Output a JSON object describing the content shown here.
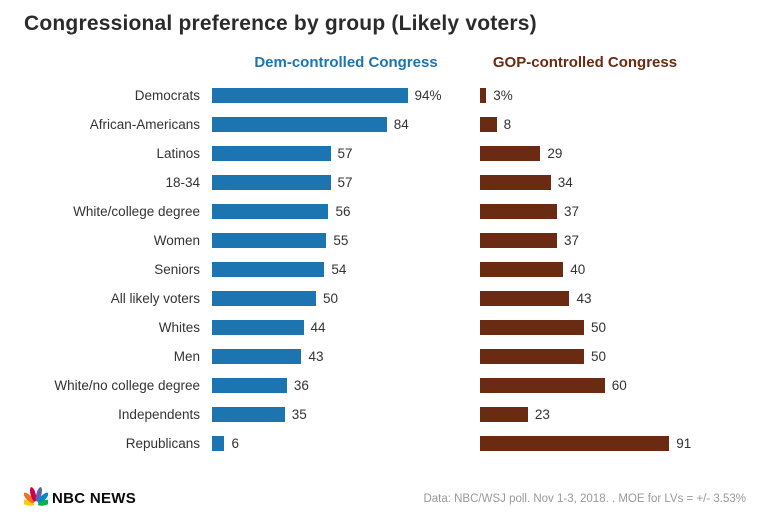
{
  "title": "Congressional preference by group (Likely voters)",
  "legend": {
    "dem": "Dem-controlled Congress",
    "gop": "GOP-controlled Congress"
  },
  "colors": {
    "dem": "#1c75b0",
    "gop": "#6a2b12"
  },
  "footer": {
    "brand": "NBC NEWS",
    "source": "Data: NBC/WSJ poll. Nov 1-3, 2018. . MOE for LVs = +/- 3.53%"
  },
  "chart_data": {
    "type": "bar",
    "orientation": "horizontal",
    "title": "Congressional preference by group (Likely voters)",
    "xlim": [
      0,
      100
    ],
    "grid": false,
    "legend_position": "top",
    "categories": [
      "Democrats",
      "African-Americans",
      "Latinos",
      "18-34",
      "White/college degree",
      "Women",
      "Seniors",
      "All likely voters",
      "Whites",
      "Men",
      "White/no college degree",
      "Independents",
      "Republicans"
    ],
    "series": [
      {
        "name": "Dem-controlled Congress",
        "color": "#1c75b0",
        "values": [
          94,
          84,
          57,
          57,
          56,
          55,
          54,
          50,
          44,
          43,
          36,
          35,
          6
        ],
        "labels": [
          "94%",
          "84",
          "57",
          "57",
          "56",
          "55",
          "54",
          "50",
          "44",
          "43",
          "36",
          "35",
          "6"
        ]
      },
      {
        "name": "GOP-controlled Congress",
        "color": "#6a2b12",
        "values": [
          3,
          8,
          29,
          34,
          37,
          37,
          40,
          43,
          50,
          50,
          60,
          23,
          91
        ],
        "labels": [
          "3%",
          "8",
          "29",
          "34",
          "37",
          "37",
          "40",
          "43",
          "50",
          "50",
          "60",
          "23",
          "91"
        ]
      }
    ]
  }
}
